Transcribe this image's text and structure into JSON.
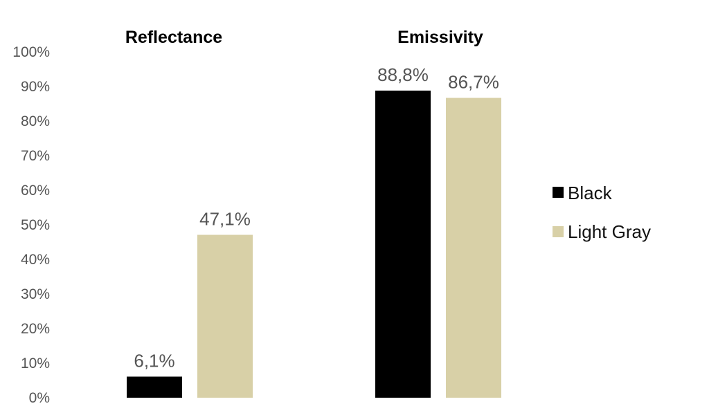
{
  "chart_data": {
    "type": "bar",
    "categories": [
      "Reflectance",
      "Emissivity"
    ],
    "series": [
      {
        "name": "Black",
        "color": "#000000",
        "values": [
          6.1,
          88.8
        ],
        "labels": [
          "6,1%",
          "88,8%"
        ]
      },
      {
        "name": "Light Gray",
        "color": "#d8d0a7",
        "values": [
          47.1,
          86.7
        ],
        "labels": [
          "47,1%",
          "86,7%"
        ]
      }
    ],
    "y_ticks": [
      "0%",
      "10%",
      "20%",
      "30%",
      "40%",
      "50%",
      "60%",
      "70%",
      "80%",
      "90%",
      "100%"
    ],
    "ylim": [
      0,
      100
    ],
    "grid": false,
    "legend_position": "right",
    "title": "",
    "xlabel": "",
    "ylabel": ""
  }
}
